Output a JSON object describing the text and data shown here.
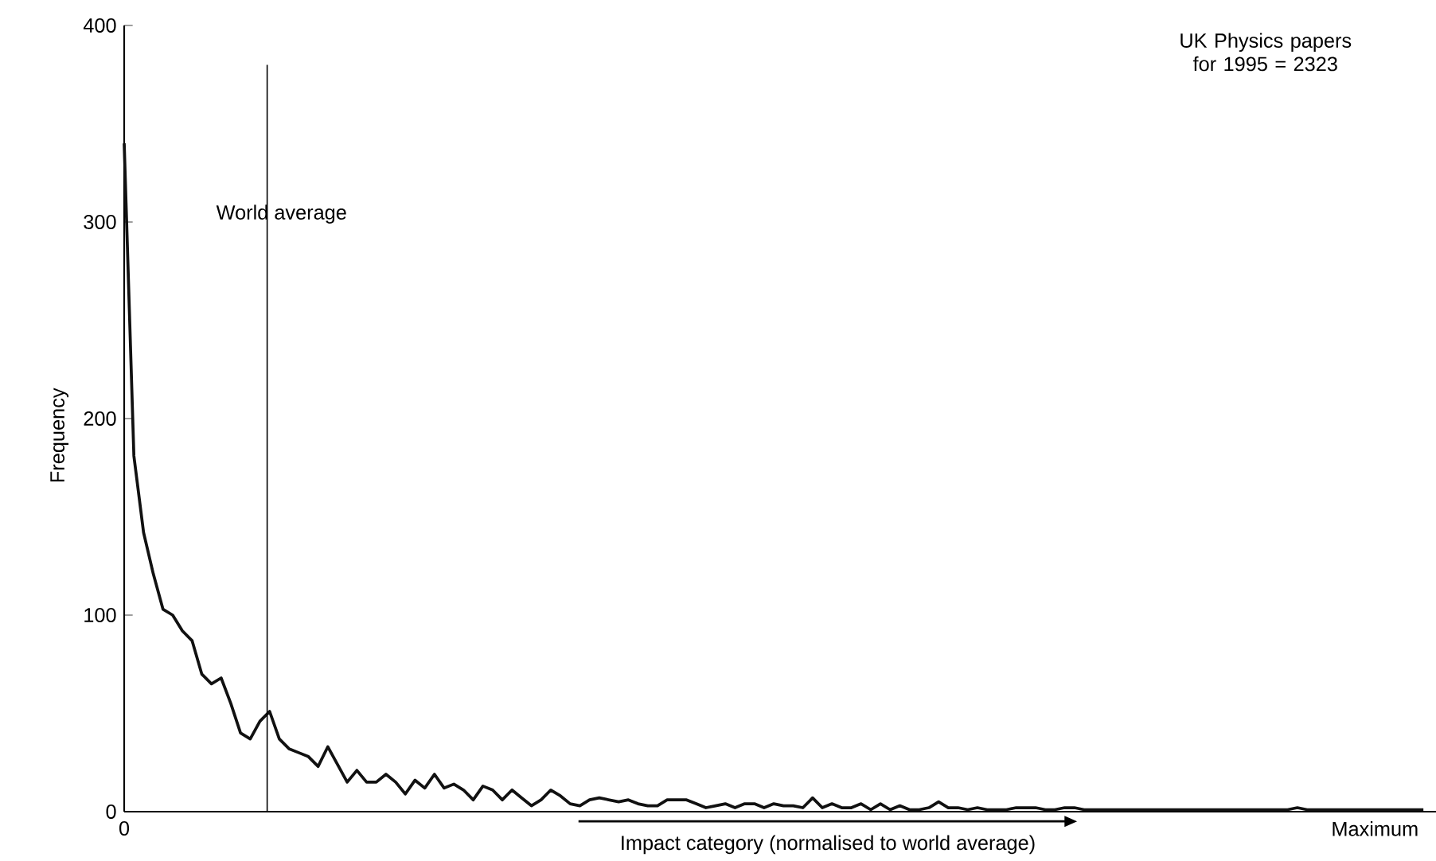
{
  "chart_data": {
    "type": "line",
    "xlabel": "Impact category (normalised to world average)",
    "ylabel": "Frequency",
    "annotations": [
      "UK Physics papers for 1995 = 2323",
      "World average"
    ],
    "categories": [
      "0",
      null,
      null,
      null,
      null,
      null,
      null,
      null,
      null,
      null,
      null,
      null,
      null,
      null,
      null,
      null,
      null,
      null,
      null,
      null,
      null,
      null,
      null,
      null,
      null,
      null,
      null,
      null,
      null,
      null,
      null,
      null,
      null,
      null,
      null,
      null,
      null,
      null,
      null,
      null,
      null,
      null,
      null,
      null,
      null,
      null,
      null,
      null,
      null,
      null,
      null,
      null,
      null,
      null,
      null,
      null,
      null,
      null,
      null,
      null,
      null,
      null,
      null,
      null,
      null,
      null,
      null,
      null,
      null,
      null,
      null,
      null,
      null,
      null,
      null,
      null,
      null,
      null,
      null,
      null,
      null,
      null,
      null,
      null,
      null,
      null,
      null,
      null,
      null,
      null,
      null,
      null,
      null,
      null,
      null,
      null,
      null,
      null,
      null,
      null,
      null,
      null,
      null,
      null,
      null,
      null,
      null,
      null,
      null,
      null,
      null,
      null,
      null,
      null,
      null,
      null,
      null,
      null,
      null,
      null,
      null,
      null,
      null,
      null,
      null,
      null,
      null,
      null,
      null,
      "Maximum",
      null,
      null,
      null,
      null,
      null
    ],
    "ylim": [
      0,
      400
    ],
    "yticks": [
      0,
      100,
      200,
      300,
      400
    ],
    "marker": "none",
    "line_style": "solid",
    "series": [
      {
        "color": "#111111",
        "values": [
          340,
          181,
          142,
          121,
          103,
          100,
          92,
          87,
          70,
          65,
          68,
          55,
          40,
          37,
          46,
          51,
          37,
          32,
          30,
          28,
          23,
          33,
          24,
          15,
          21,
          15,
          15,
          19,
          15,
          9,
          16,
          12,
          19,
          12,
          14,
          11,
          6,
          13,
          11,
          6,
          11,
          7,
          3,
          6,
          11,
          8,
          4,
          3,
          6,
          7,
          6,
          5,
          6,
          4,
          3,
          3,
          6,
          6,
          6,
          4,
          2,
          3,
          4,
          2,
          4,
          4,
          2,
          4,
          3,
          3,
          2,
          7,
          2,
          4,
          2,
          2,
          4,
          1,
          4,
          1,
          3,
          1,
          1,
          2,
          5,
          2,
          2,
          1,
          2,
          1,
          1,
          1,
          2,
          2,
          2,
          1,
          1,
          2,
          2,
          1,
          1,
          1,
          1,
          1,
          1,
          1,
          1,
          1,
          1,
          1,
          1,
          1,
          1,
          1,
          1,
          1,
          1,
          1,
          1,
          1,
          1,
          2,
          1,
          1,
          1,
          1,
          1,
          1,
          1,
          1,
          1,
          1,
          1,
          1,
          1
        ]
      }
    ]
  }
}
